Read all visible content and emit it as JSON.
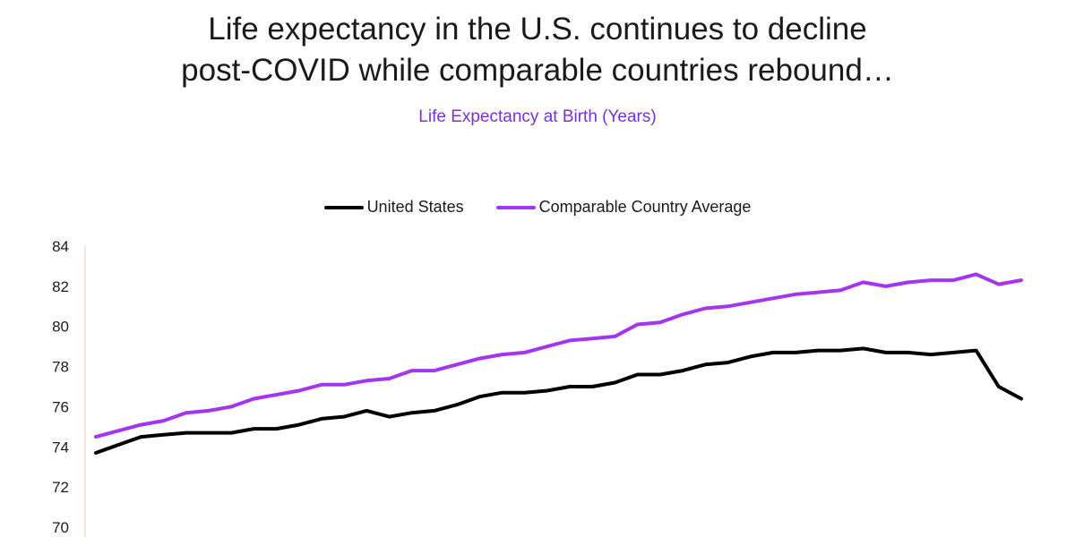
{
  "chart_data": {
    "type": "line",
    "title": "Life expectancy in the U.S. continues to decline post-COVID while comparable countries rebound…",
    "title_lines": [
      "Life expectancy in the U.S. continues to decline",
      "post-COVID while comparable countries rebound…"
    ],
    "subtitle": "Life Expectancy at Birth (Years)",
    "xlabel": "",
    "ylabel": "",
    "ylim": [
      70,
      84
    ],
    "yticks": [
      70,
      72,
      74,
      76,
      78,
      80,
      82,
      84
    ],
    "grid": false,
    "legend_position": "top-center",
    "series": [
      {
        "name": "United States",
        "color": "#000000",
        "values": [
          73.7,
          74.1,
          74.5,
          74.6,
          74.7,
          74.7,
          74.7,
          74.9,
          74.9,
          75.1,
          75.4,
          75.5,
          75.8,
          75.5,
          75.7,
          75.8,
          76.1,
          76.5,
          76.7,
          76.7,
          76.8,
          77.0,
          77.0,
          77.2,
          77.6,
          77.6,
          77.8,
          78.1,
          78.2,
          78.5,
          78.7,
          78.7,
          78.8,
          78.8,
          78.9,
          78.7,
          78.7,
          78.6,
          78.7,
          78.8,
          77.0,
          76.4
        ]
      },
      {
        "name": "Comparable Country Average",
        "color": "#a335ee",
        "values": [
          74.5,
          74.8,
          75.1,
          75.3,
          75.7,
          75.8,
          76.0,
          76.4,
          76.6,
          76.8,
          77.1,
          77.1,
          77.3,
          77.4,
          77.8,
          77.8,
          78.1,
          78.4,
          78.6,
          78.7,
          79.0,
          79.3,
          79.4,
          79.5,
          80.1,
          80.2,
          80.6,
          80.9,
          81.0,
          81.2,
          81.4,
          81.6,
          81.7,
          81.8,
          82.2,
          82.0,
          82.2,
          82.3,
          82.3,
          82.6,
          82.1,
          82.3
        ]
      }
    ]
  }
}
